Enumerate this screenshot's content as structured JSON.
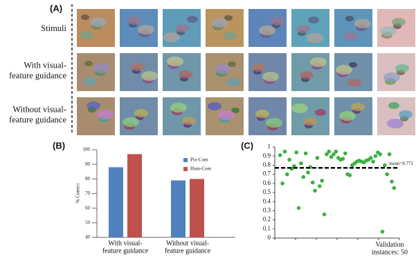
{
  "panel_a": {
    "label": "(A)",
    "row_labels": [
      [
        "Stimuli"
      ],
      [
        "With visual-",
        "feature guidance"
      ],
      [
        "Without visual-",
        "feature guidance"
      ]
    ]
  },
  "chart_data": [
    {
      "type": "bar",
      "label": "(B)",
      "ylabel": "% Correct",
      "categories": [
        [
          "With visual-",
          "feature guidance"
        ],
        [
          "Without visual-",
          "feature guidance"
        ]
      ],
      "series": [
        {
          "name": "Pix-Com",
          "color": "#4f81bd",
          "values": [
            88,
            79
          ]
        },
        {
          "name": "Hum-Com",
          "color": "#c0504d",
          "values": [
            97,
            80
          ]
        }
      ],
      "ylim": [
        40,
        100
      ],
      "yticks": [
        40,
        50,
        60,
        70,
        80,
        90,
        100
      ]
    },
    {
      "type": "scatter",
      "label": "(C)",
      "color": "#3cb043",
      "values": [
        0.91,
        0.6,
        0.95,
        0.7,
        0.86,
        0.76,
        0.79,
        0.94,
        0.33,
        0.82,
        0.67,
        0.93,
        0.72,
        0.78,
        0.61,
        0.52,
        0.88,
        0.57,
        0.63,
        0.26,
        0.92,
        0.95,
        0.89,
        0.92,
        0.95,
        0.88,
        0.86,
        0.87,
        0.93,
        0.7,
        0.69,
        0.8,
        0.82,
        0.84,
        0.85,
        0.84,
        0.83,
        0.85,
        0.86,
        0.88,
        0.84,
        0.9,
        0.94,
        0.92,
        0.07,
        0.8,
        0.7,
        0.92,
        0.62,
        0.55
      ],
      "mean_line": {
        "value": 0.771,
        "label": "mean=0.771"
      },
      "xlabel": [
        "Validation",
        "instances: 50"
      ],
      "ylim": [
        0,
        1
      ],
      "yticks": [
        0,
        0.1,
        0.2,
        0.3,
        0.4,
        0.5,
        0.6,
        0.7,
        0.8,
        0.9,
        1
      ]
    }
  ]
}
